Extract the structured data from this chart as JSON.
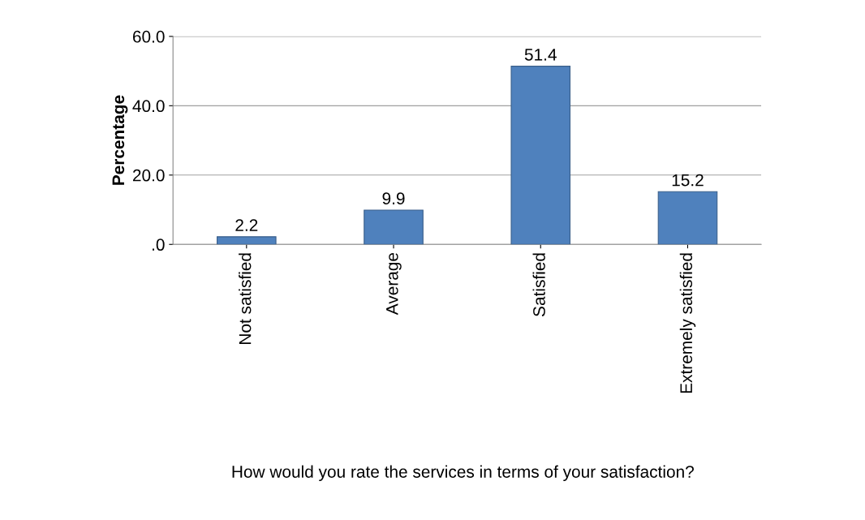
{
  "chart_data": {
    "type": "bar",
    "ylabel": "Percentage",
    "xlabel": "How would you rate the services in terms of your satisfaction?",
    "categories": [
      "Not satisfied",
      "Average",
      "Satisfied",
      "Extremely satisfied"
    ],
    "values": [
      2.2,
      9.9,
      51.4,
      15.2
    ],
    "color": "#4f81bd",
    "ylim": [
      0,
      60
    ],
    "yticks": [
      {
        "value": 0,
        "label": ".0"
      },
      {
        "value": 20,
        "label": "20.0"
      },
      {
        "value": 40,
        "label": "40.0"
      },
      {
        "value": 60,
        "label": "60.0"
      }
    ],
    "grid": "y",
    "data_labels": true
  }
}
